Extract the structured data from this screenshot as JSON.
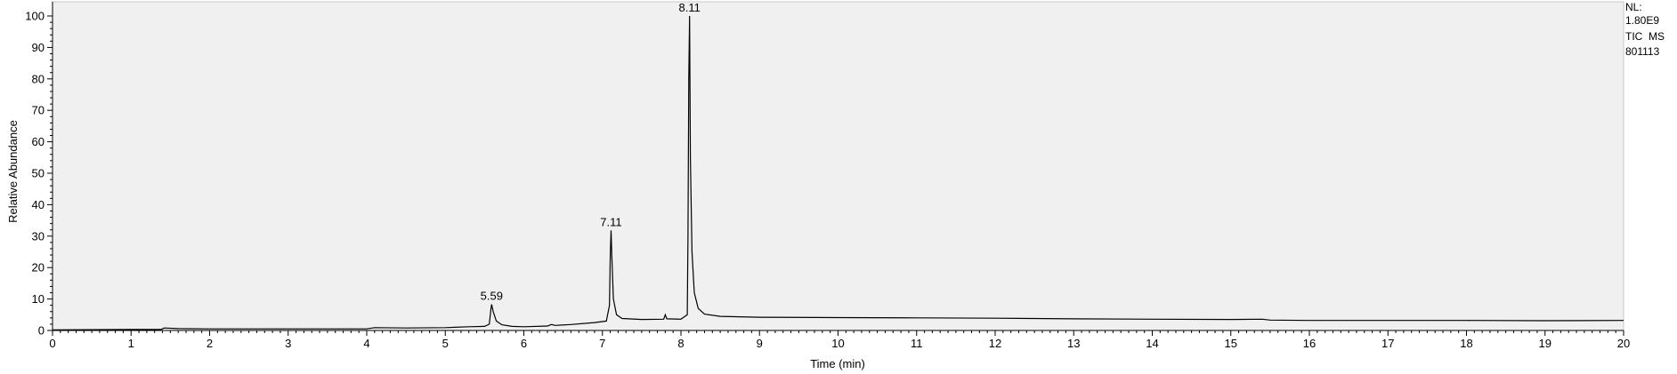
{
  "chart_data": {
    "type": "line",
    "xlabel": "Time (min)",
    "ylabel": "Relative Abundance",
    "xlim": [
      0,
      20
    ],
    "ylim": [
      0,
      100
    ],
    "x_ticks": [
      0,
      1,
      2,
      3,
      4,
      5,
      6,
      7,
      8,
      9,
      10,
      11,
      12,
      13,
      14,
      15,
      16,
      17,
      18,
      19,
      20
    ],
    "y_ticks": [
      0,
      10,
      20,
      30,
      40,
      50,
      60,
      70,
      80,
      90,
      100
    ],
    "grid": false,
    "peak_labels": [
      {
        "x": 5.59,
        "y": 8.3,
        "text": "5.59"
      },
      {
        "x": 7.11,
        "y": 31.8,
        "text": "7.11"
      },
      {
        "x": 8.11,
        "y": 100,
        "text": "8.11"
      }
    ],
    "series": [
      {
        "points": [
          [
            0.0,
            0.2
          ],
          [
            1.0,
            0.3
          ],
          [
            1.38,
            0.3
          ],
          [
            1.42,
            0.8
          ],
          [
            1.6,
            0.6
          ],
          [
            2.0,
            0.5
          ],
          [
            3.0,
            0.5
          ],
          [
            4.0,
            0.5
          ],
          [
            4.1,
            0.9
          ],
          [
            4.5,
            0.8
          ],
          [
            5.0,
            0.9
          ],
          [
            5.3,
            1.2
          ],
          [
            5.5,
            1.3
          ],
          [
            5.56,
            2.0
          ],
          [
            5.58,
            6.5
          ],
          [
            5.59,
            8.3
          ],
          [
            5.61,
            6.0
          ],
          [
            5.65,
            3.0
          ],
          [
            5.72,
            1.8
          ],
          [
            5.85,
            1.3
          ],
          [
            6.0,
            1.2
          ],
          [
            6.3,
            1.4
          ],
          [
            6.35,
            1.9
          ],
          [
            6.4,
            1.6
          ],
          [
            6.6,
            1.9
          ],
          [
            6.9,
            2.5
          ],
          [
            7.05,
            3.0
          ],
          [
            7.09,
            8.0
          ],
          [
            7.1,
            24.0
          ],
          [
            7.11,
            31.8
          ],
          [
            7.12,
            24.0
          ],
          [
            7.14,
            10.0
          ],
          [
            7.18,
            5.0
          ],
          [
            7.25,
            3.8
          ],
          [
            7.5,
            3.5
          ],
          [
            7.78,
            3.6
          ],
          [
            7.8,
            5.0
          ],
          [
            7.82,
            3.7
          ],
          [
            8.0,
            3.6
          ],
          [
            8.08,
            5.0
          ],
          [
            8.09,
            30.0
          ],
          [
            8.1,
            80.0
          ],
          [
            8.11,
            100.0
          ],
          [
            8.12,
            55.0
          ],
          [
            8.14,
            25.0
          ],
          [
            8.17,
            12.0
          ],
          [
            8.22,
            7.0
          ],
          [
            8.3,
            5.2
          ],
          [
            8.5,
            4.5
          ],
          [
            9.0,
            4.2
          ],
          [
            10.0,
            4.1
          ],
          [
            11.0,
            4.0
          ],
          [
            12.0,
            3.9
          ],
          [
            13.0,
            3.7
          ],
          [
            14.0,
            3.6
          ],
          [
            15.0,
            3.5
          ],
          [
            15.4,
            3.6
          ],
          [
            15.5,
            3.3
          ],
          [
            16.0,
            3.2
          ],
          [
            17.0,
            3.2
          ],
          [
            18.0,
            3.2
          ],
          [
            19.0,
            3.1
          ],
          [
            20.0,
            3.2
          ]
        ]
      }
    ]
  },
  "info": {
    "nl_label": "NL:",
    "nl_value": "1.80E9",
    "trace": "TIC  MS",
    "sample": "801113"
  },
  "colors": {
    "plot_background": "#f0f0f0",
    "trace": "#000000",
    "axis": "#000000"
  }
}
